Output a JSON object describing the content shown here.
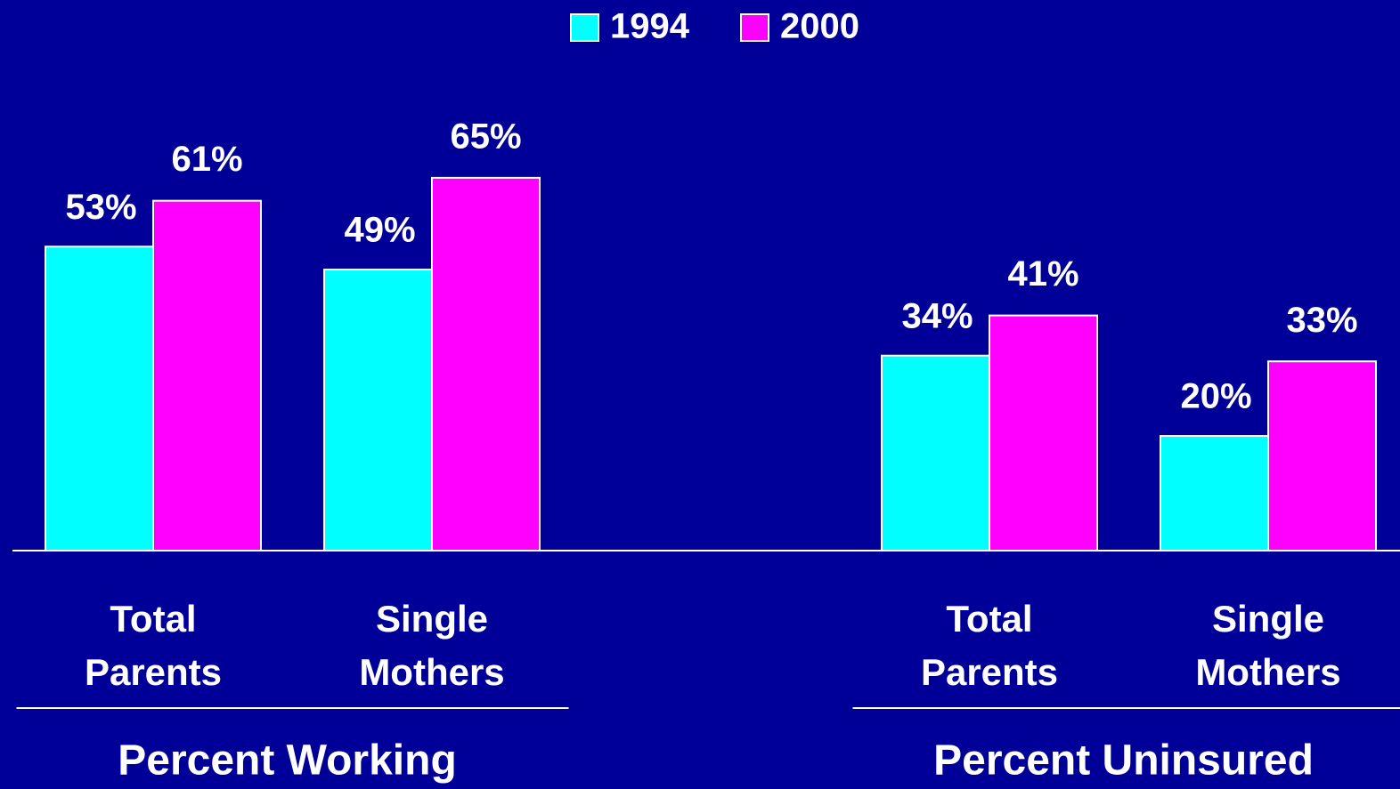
{
  "chart_data": {
    "type": "bar",
    "categories": [
      "Total Parents",
      "Single Mothers",
      null,
      "Total Parents",
      "Single Mothers"
    ],
    "series": [
      {
        "name": "1994",
        "color": "#00ffff",
        "values": [
          53,
          49,
          null,
          34,
          20
        ],
        "value_labels": [
          "53%",
          "49%",
          null,
          "34%",
          "20%"
        ]
      },
      {
        "name": "2000",
        "color": "#ff00ff",
        "values": [
          61,
          65,
          null,
          41,
          33
        ],
        "value_labels": [
          "61%",
          "65%",
          null,
          "41%",
          "33%"
        ]
      }
    ],
    "group_labels": [
      "Percent Working",
      "Percent Uninsured"
    ],
    "ylim": [
      0,
      96
    ],
    "legend": "top"
  }
}
